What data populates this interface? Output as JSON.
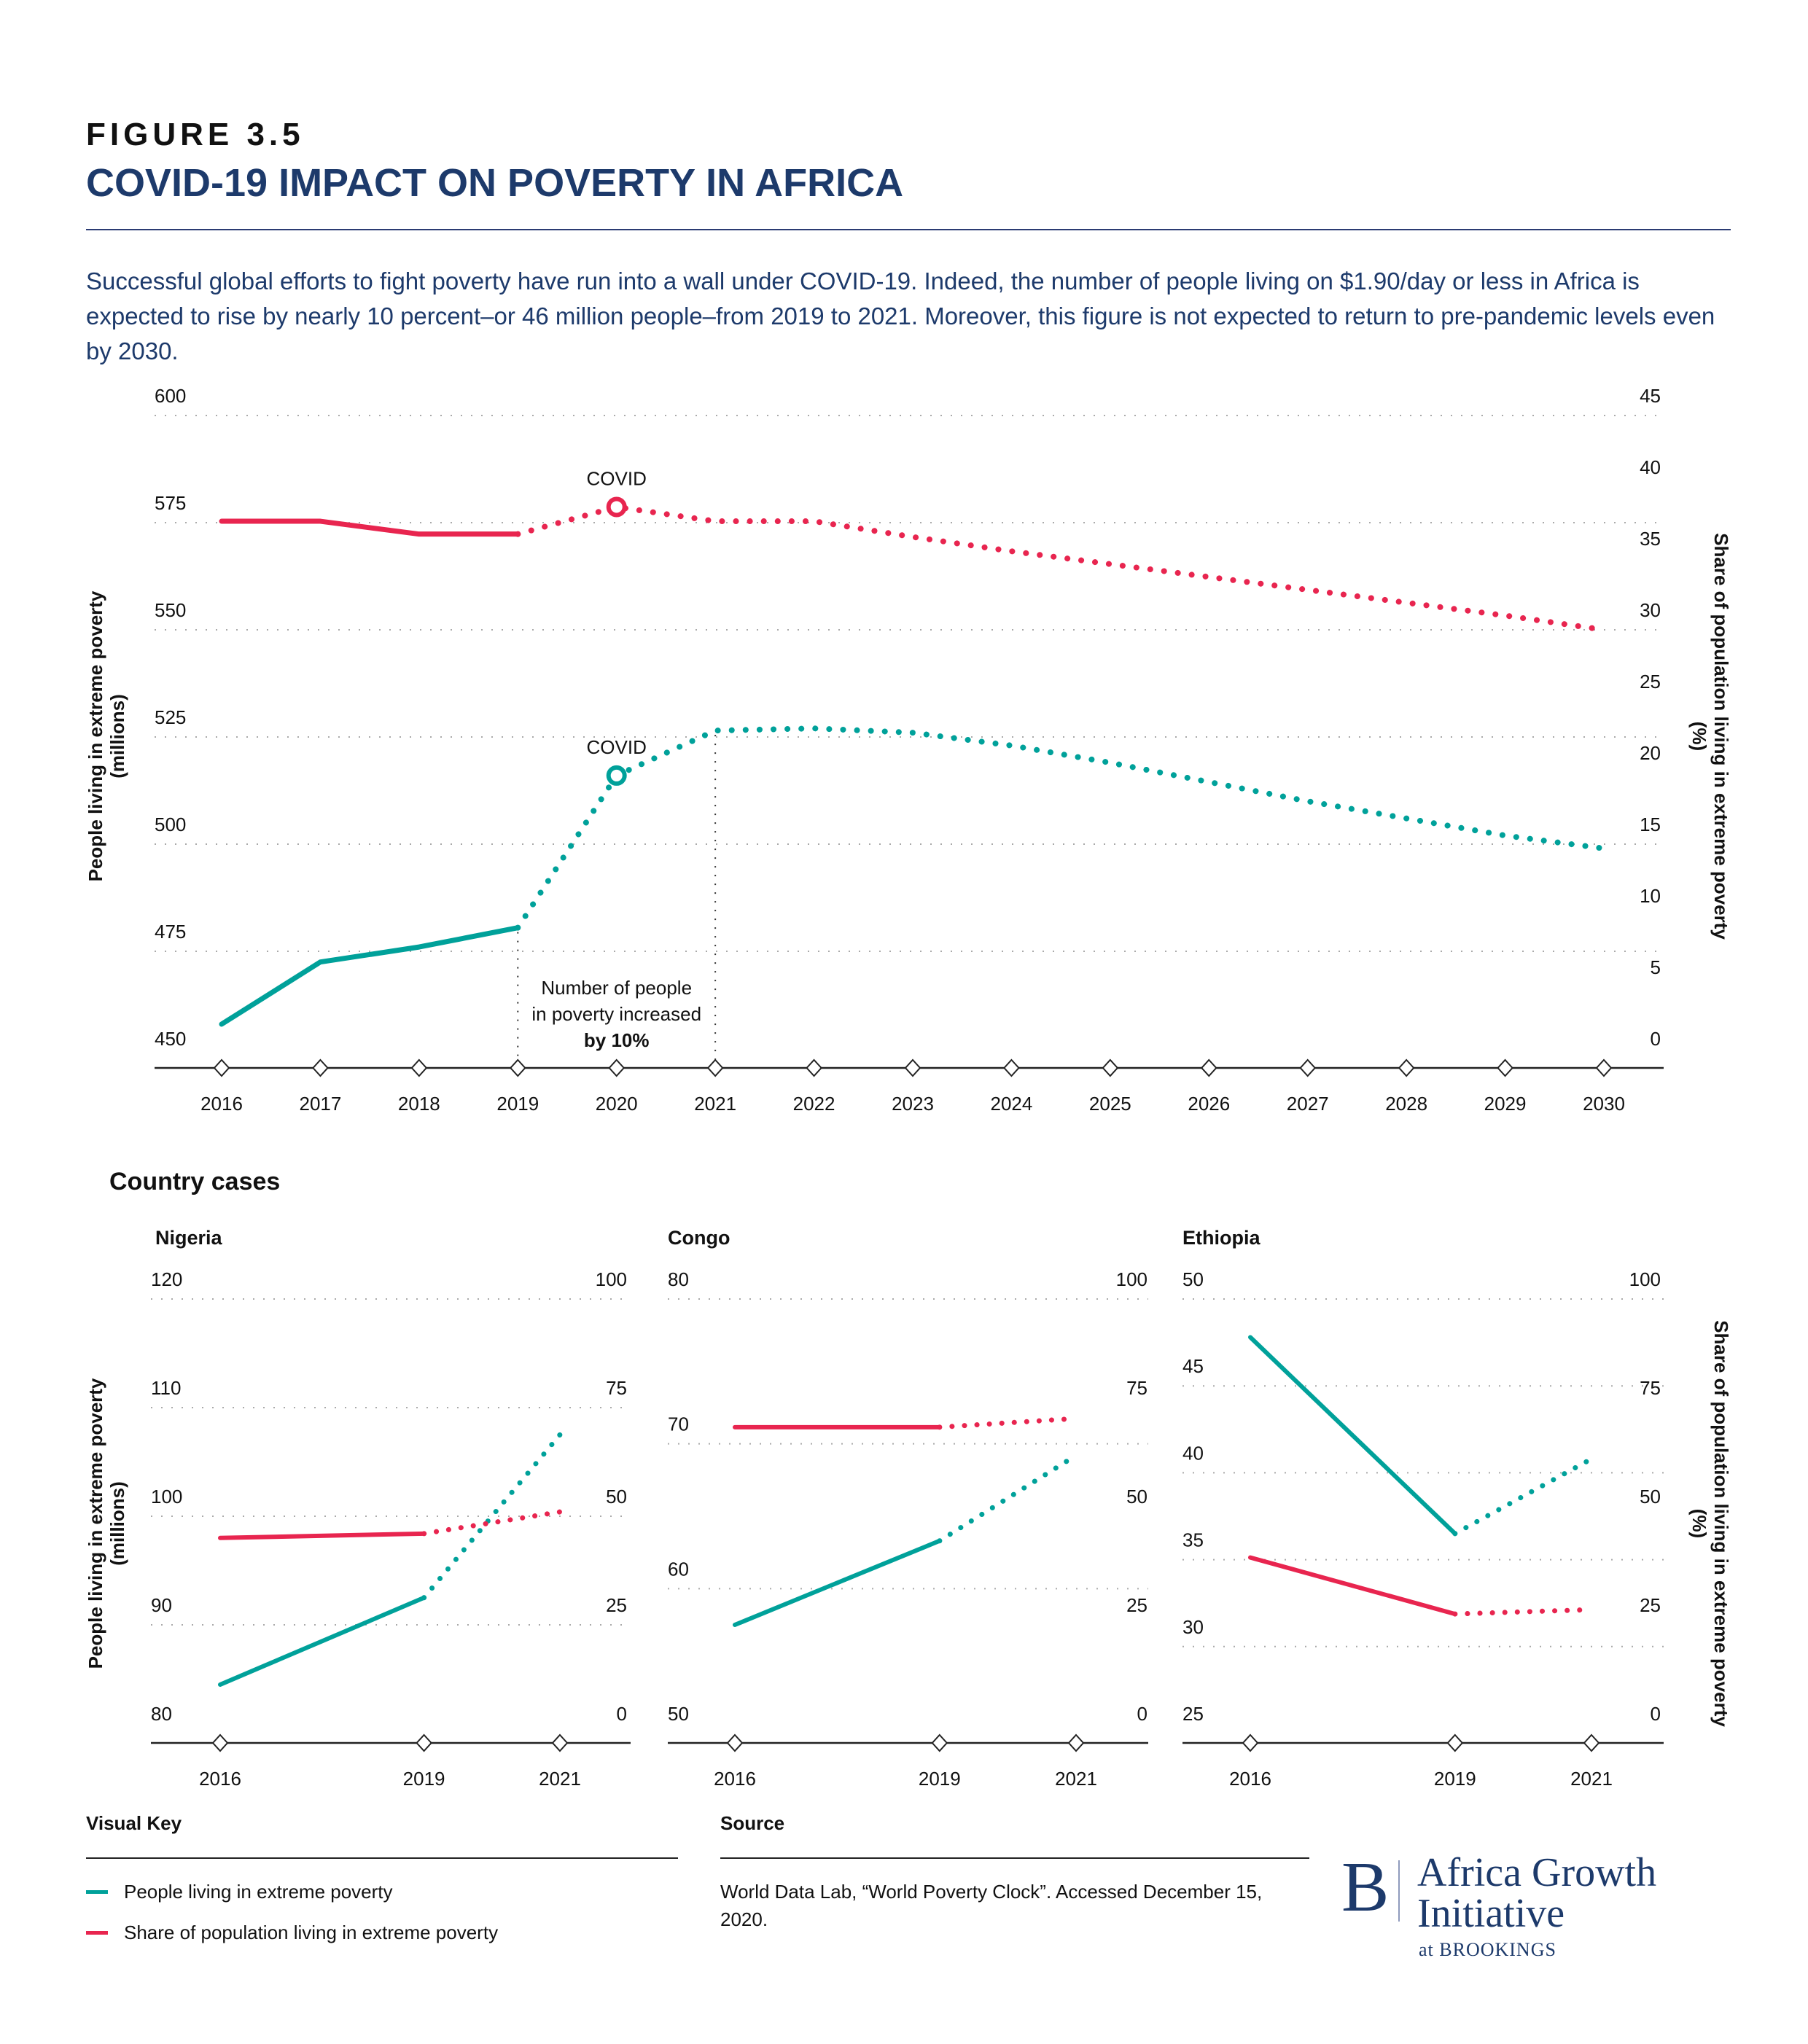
{
  "header": {
    "figure_label": "FIGURE 3.5",
    "title": "COVID-19 IMPACT ON POVERTY IN AFRICA",
    "subtitle": "Successful global efforts to fight poverty have run into a wall under COVID-19. Indeed, the number of people living on $1.90/day or less in Africa is expected to rise by nearly 10 percent–or 46 million people–from 2019 to 2021. Moreover, this figure is not expected to return to pre-pandemic levels even by 2030."
  },
  "colors": {
    "people": "#00a19a",
    "share": "#e8254f",
    "title": "#1d3a6b"
  },
  "chart_data": [
    {
      "id": "africa",
      "type": "line",
      "title": "",
      "x": [
        2016,
        2017,
        2018,
        2019,
        2020,
        2021,
        2022,
        2023,
        2024,
        2025,
        2026,
        2027,
        2028,
        2029,
        2030
      ],
      "x_tick_labels": [
        "2016",
        "2017",
        "2018",
        "2019",
        "2020",
        "2021",
        "2022",
        "2023",
        "2024",
        "2025",
        "2026",
        "2027",
        "2028",
        "2029",
        "2030"
      ],
      "ylabel_left": "People living in extreme poverty (millions)",
      "ylabel_left_lines": [
        "People living in extreme poverty",
        "(millions)"
      ],
      "ylabel_right": "Share of population living in extreme poverty (%)",
      "ylabel_right_lines": [
        "Share of population living in extreme poverty",
        "(%)"
      ],
      "ylim_left": [
        450,
        600
      ],
      "yticks_left": [
        450,
        475,
        500,
        525,
        550,
        575,
        600
      ],
      "ylim_right": [
        0,
        45
      ],
      "yticks_right": [
        0,
        5,
        10,
        15,
        20,
        25,
        30,
        35,
        40,
        45
      ],
      "grid": true,
      "observed_until": 2019,
      "series": [
        {
          "name": "People living in extreme poverty",
          "axis": "left",
          "color_key": "people",
          "values": [
            458,
            472.5,
            476,
            480.5,
            516,
            526.5,
            527,
            526,
            523,
            519,
            514.5,
            510,
            506,
            502,
            499
          ]
        },
        {
          "name": "Share of population living in extreme poverty",
          "axis": "right",
          "color_key": "share",
          "values": [
            37.6,
            37.6,
            36.7,
            36.7,
            38.6,
            37.6,
            37.6,
            36.5,
            35.5,
            34.6,
            33.7,
            32.8,
            31.9,
            31.0,
            30.0
          ]
        }
      ],
      "markers": [
        {
          "label": "COVID",
          "x": 2020,
          "series": 0
        },
        {
          "label": "COVID",
          "x": 2020,
          "series": 1
        }
      ],
      "annotation": {
        "lines": [
          "Number of people",
          "in poverty increased"
        ],
        "bold": "by 10%",
        "from_x": 2019,
        "to_x": 2021
      }
    },
    {
      "id": "nigeria",
      "type": "line",
      "title": "Nigeria",
      "x": [
        2016,
        2019,
        2021
      ],
      "x_tick_labels": [
        "2016",
        "2019",
        "2021"
      ],
      "ylim_left": [
        80,
        120
      ],
      "yticks_left": [
        80,
        90,
        100,
        110,
        120
      ],
      "ylim_right": [
        0,
        100
      ],
      "yticks_right": [
        0,
        25,
        50,
        75,
        100
      ],
      "observed_until": 2019,
      "series": [
        {
          "name": "People living in extreme poverty",
          "axis": "left",
          "color_key": "people",
          "values": [
            84.5,
            92.5,
            107.5
          ]
        },
        {
          "name": "Share of population living in extreme poverty",
          "axis": "right",
          "color_key": "share",
          "values": [
            45,
            46,
            51
          ]
        }
      ]
    },
    {
      "id": "congo",
      "type": "line",
      "title": "Congo",
      "x": [
        2016,
        2019,
        2021
      ],
      "x_tick_labels": [
        "2016",
        "2019",
        "2021"
      ],
      "ylim_left": [
        50,
        80
      ],
      "yticks_left": [
        50,
        60,
        70,
        80
      ],
      "ylim_right": [
        0,
        100
      ],
      "yticks_right": [
        0,
        25,
        50,
        75,
        100
      ],
      "observed_until": 2019,
      "series": [
        {
          "name": "People living in extreme poverty",
          "axis": "left",
          "color_key": "people",
          "values": [
            57.5,
            63.3,
            69.2
          ]
        },
        {
          "name": "Share of population living in extreme poverty",
          "axis": "right",
          "color_key": "share",
          "values": [
            70.5,
            70.5,
            72.5
          ]
        }
      ]
    },
    {
      "id": "ethiopia",
      "type": "line",
      "title": "Ethiopia",
      "x": [
        2016,
        2019,
        2021
      ],
      "x_tick_labels": [
        "2016",
        "2019",
        "2021"
      ],
      "ylim_left": [
        25,
        50
      ],
      "yticks_left": [
        25,
        30,
        35,
        40,
        45,
        50
      ],
      "ylim_right": [
        0,
        100
      ],
      "yticks_right": [
        0,
        25,
        50,
        75,
        100
      ],
      "observed_until": 2019,
      "series": [
        {
          "name": "People living in extreme poverty",
          "axis": "left",
          "color_key": "people",
          "values": [
            47.8,
            36.5,
            40.8
          ]
        },
        {
          "name": "Share of population living in extreme poverty",
          "axis": "right",
          "color_key": "share",
          "values": [
            40.5,
            27.5,
            28.5
          ]
        }
      ]
    }
  ],
  "country_section": {
    "title": "Country cases",
    "ylabel_left_lines": [
      "People living in extreme poverty",
      "(millions)"
    ],
    "ylabel_right_lines": [
      "Share of population living in extreme poverty",
      "(%)"
    ]
  },
  "footer": {
    "key_title": "Visual Key",
    "key_items": [
      {
        "label": "People living in extreme poverty",
        "color_key": "people"
      },
      {
        "label": "Share of population living in extreme poverty",
        "color_key": "share"
      }
    ],
    "source_title": "Source",
    "source_text": "World Data Lab, “World Poverty Clock”. Accessed December 15, 2020."
  },
  "logo": {
    "mark": "B",
    "line1": "Africa Growth",
    "line2": "Initiative",
    "line3": "at BROOKINGS"
  }
}
